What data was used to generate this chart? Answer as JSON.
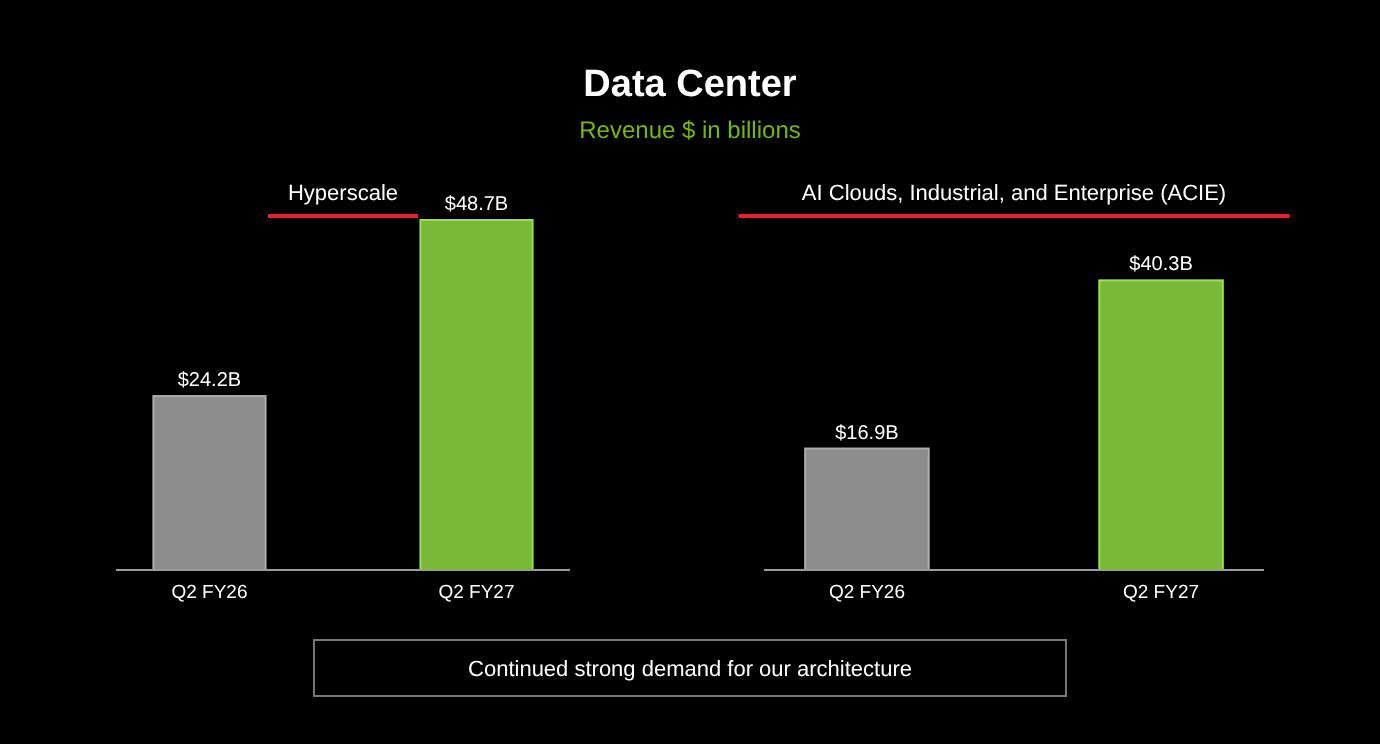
{
  "chart_data": [
    {
      "type": "other",
      "title": "Data Center",
      "subtitle": "Revenue $ in billions",
      "annotations": [
        "Continued strong demand for our architecture"
      ]
    },
    {
      "type": "bar",
      "title": "Hyperscale",
      "categories": [
        "Q2 FY26",
        "Q2 FY27"
      ],
      "values": [
        24.2,
        48.7
      ],
      "colors": [
        "#8c8c8c",
        "#7ab839"
      ],
      "value_labels": [
        "$24.2B",
        "$48.7B"
      ]
    },
    {
      "type": "bar",
      "title": "AI Clouds, Industrial, and Enterprise (ACIE)",
      "categories": [
        "Q2 FY26",
        "Q2 FY27"
      ],
      "values": [
        16.9,
        40.3
      ],
      "colors": [
        "#8c8c8c",
        "#7ab839"
      ],
      "value_labels": [
        "$16.9B",
        "$40.3B"
      ]
    }
  ]
}
